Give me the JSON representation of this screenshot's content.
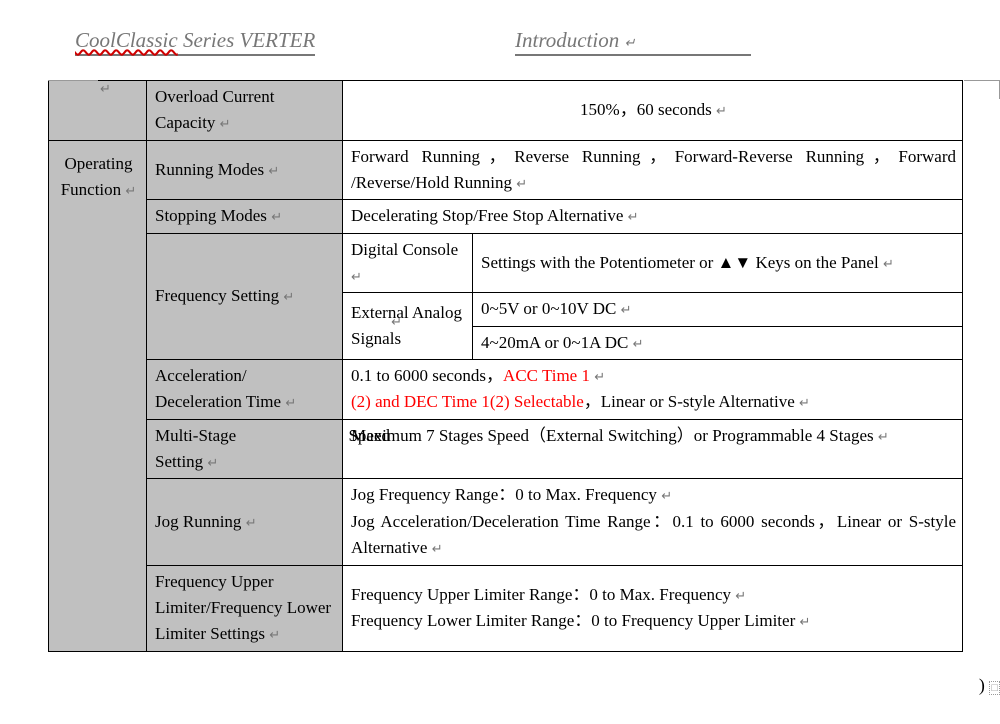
{
  "header": {
    "brand": "CoolClassic",
    "product": " Series VERTER",
    "section": "Introduction"
  },
  "colors": {
    "background": "#ffffff",
    "text": "#000000",
    "headerGrey": "#777777",
    "cellGrey": "#c0c0c0",
    "accentRed": "#ff0000",
    "wavyRed": "#d00000"
  },
  "table": {
    "section": "Operating Function",
    "rows": {
      "overload": {
        "label": "Overload Current Capacity",
        "value": "150%，60 seconds"
      },
      "running": {
        "label": "Running Modes",
        "value": "Forward Running，Reverse Running，Forward-Reverse Running，Forward /Reverse/Hold Running"
      },
      "stopping": {
        "label": "Stopping Modes",
        "value": "Decelerating Stop/Free Stop Alternative"
      },
      "freq": {
        "label": "Frequency Setting",
        "sub1": {
          "label": "Digital Console",
          "value": "Settings with the Potentiometer or ▲▼ Keys on the Panel"
        },
        "sub2": {
          "label": "External Analog Signals",
          "value1": "0~5V or 0~10V DC",
          "value2": "4~20mA or 0~1A DC"
        }
      },
      "accel": {
        "label": "Acceleration/ Deceleration Time",
        "value_black1": "0.1 to 6000 seconds，",
        "value_red1": "ACC Time 1",
        "value_red2": "(2) and DEC Time 1(2) Selectable",
        "value_black2": "，Linear or S-style Alternative"
      },
      "multistage": {
        "label1": "Multi-Stage",
        "label2": "Speed",
        "label3": " Setting",
        "value": "Maximum 7 Stages Speed（External Switching）or Programmable 4 Stages"
      },
      "jog": {
        "label": "Jog Running",
        "value": "Jog Frequency Range：0 to Max. Frequency\nJog Acceleration/Deceleration Time Range：0.1 to 6000 seconds，Linear or S-style Alternative"
      },
      "limiter": {
        "label": "Frequency Upper Limiter/Frequency Lower Limiter Settings",
        "value": "Frequency Upper Limiter Range：0 to Max. Frequency\nFrequency Lower Limiter Range：0 to Frequency Upper Limiter"
      }
    }
  },
  "paraMark": "↵"
}
